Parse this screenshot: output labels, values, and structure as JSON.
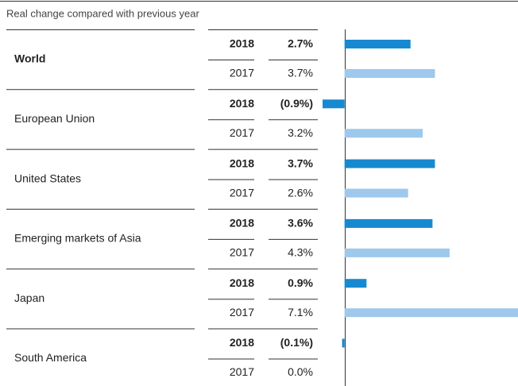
{
  "chart_data": {
    "type": "bar",
    "orientation": "horizontal",
    "subtitle": "Real change compared with previous year",
    "categories": [
      "World",
      "European Union",
      "United States",
      "Emerging markets of Asia",
      "Japan",
      "South America"
    ],
    "series": [
      {
        "name": "2018",
        "color": "#1689d0",
        "values": [
          2.7,
          -0.9,
          3.7,
          3.6,
          0.9,
          -0.1
        ],
        "value_labels": [
          "2.7%",
          "(0.9%)",
          "3.7%",
          "3.6%",
          "0.9%",
          "(0.1%)"
        ]
      },
      {
        "name": "2017",
        "color": "#9ec8ec",
        "values": [
          3.7,
          3.2,
          2.6,
          4.3,
          7.1,
          0.0
        ],
        "value_labels": [
          "3.7%",
          "3.2%",
          "2.6%",
          "4.3%",
          "7.1%",
          "0.0%"
        ]
      }
    ],
    "xlim": [
      -0.9,
      7.1
    ]
  }
}
